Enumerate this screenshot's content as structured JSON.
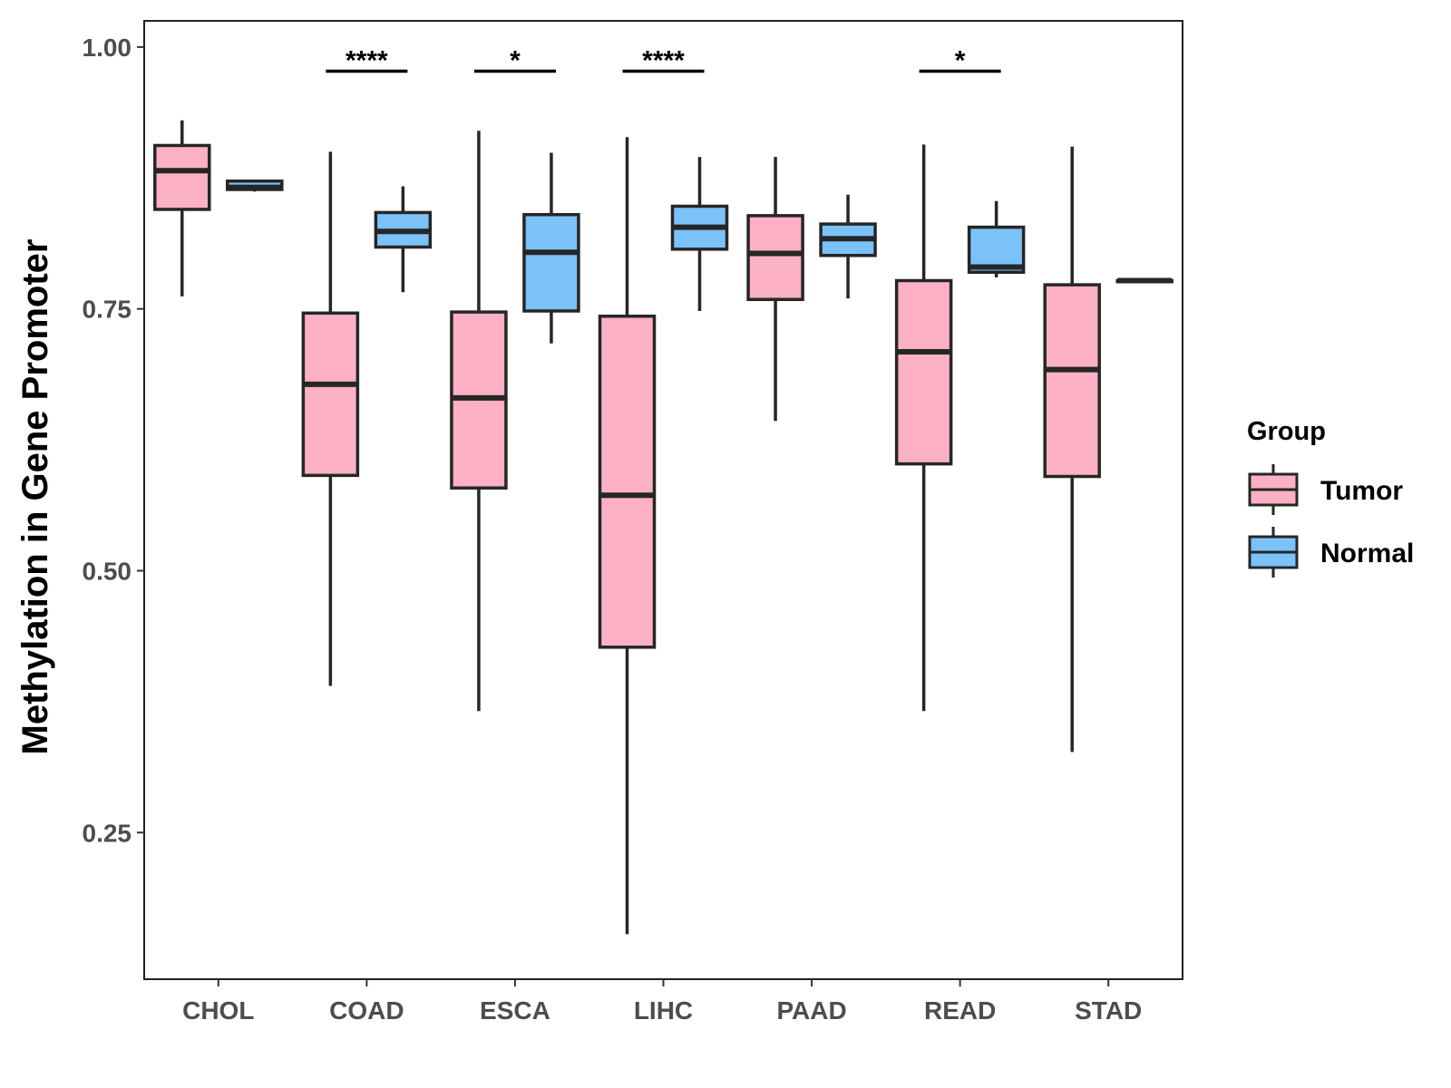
{
  "chart_data": {
    "type": "boxplot",
    "title": "",
    "xlabel": "",
    "ylabel": "Methylation in Gene Promoter",
    "ylim": [
      0.11,
      1.025
    ],
    "yticks": [
      0.25,
      0.5,
      0.75,
      1.0
    ],
    "ytick_labels": [
      "0.25",
      "0.50",
      "0.75",
      "1.00"
    ],
    "categories": [
      "CHOL",
      "COAD",
      "ESCA",
      "LIHC",
      "PAAD",
      "READ",
      "STAD"
    ],
    "legend": {
      "title": "Group",
      "position": "right",
      "entries": [
        {
          "label": "Tumor",
          "color": "#fbb0c3"
        },
        {
          "label": "Normal",
          "color": "#7bc2f8"
        }
      ]
    },
    "series": [
      {
        "name": "Tumor",
        "color": "#fbb0c3",
        "boxes": [
          {
            "category": "CHOL",
            "min": 0.762,
            "q1": 0.845,
            "median": 0.882,
            "q3": 0.906,
            "max": 0.93
          },
          {
            "category": "COAD",
            "min": 0.39,
            "q1": 0.591,
            "median": 0.678,
            "q3": 0.746,
            "max": 0.9
          },
          {
            "category": "ESCA",
            "min": 0.366,
            "q1": 0.579,
            "median": 0.665,
            "q3": 0.747,
            "max": 0.92
          },
          {
            "category": "LIHC",
            "min": 0.153,
            "q1": 0.427,
            "median": 0.572,
            "q3": 0.743,
            "max": 0.914
          },
          {
            "category": "PAAD",
            "min": 0.643,
            "q1": 0.759,
            "median": 0.803,
            "q3": 0.839,
            "max": 0.895
          },
          {
            "category": "READ",
            "min": 0.366,
            "q1": 0.602,
            "median": 0.709,
            "q3": 0.777,
            "max": 0.907
          },
          {
            "category": "STAD",
            "min": 0.327,
            "q1": 0.59,
            "median": 0.692,
            "q3": 0.773,
            "max": 0.905
          }
        ]
      },
      {
        "name": "Normal",
        "color": "#7bc2f8",
        "boxes": [
          {
            "category": "CHOL",
            "min": 0.862,
            "q1": 0.864,
            "median": 0.866,
            "q3": 0.872,
            "max": 0.873
          },
          {
            "category": "COAD",
            "min": 0.766,
            "q1": 0.809,
            "median": 0.824,
            "q3": 0.842,
            "max": 0.867
          },
          {
            "category": "ESCA",
            "min": 0.717,
            "q1": 0.748,
            "median": 0.804,
            "q3": 0.84,
            "max": 0.899
          },
          {
            "category": "LIHC",
            "min": 0.748,
            "q1": 0.807,
            "median": 0.828,
            "q3": 0.848,
            "max": 0.895
          },
          {
            "category": "PAAD",
            "min": 0.76,
            "q1": 0.801,
            "median": 0.817,
            "q3": 0.831,
            "max": 0.859
          },
          {
            "category": "READ",
            "min": 0.78,
            "q1": 0.785,
            "median": 0.79,
            "q3": 0.828,
            "max": 0.853
          },
          {
            "category": "STAD",
            "min": 0.776,
            "q1": 0.776,
            "median": 0.777,
            "q3": 0.777,
            "max": 0.777
          }
        ]
      }
    ],
    "significance": [
      {
        "category": "COAD",
        "label": "****",
        "y": 0.977
      },
      {
        "category": "ESCA",
        "label": "*",
        "y": 0.977
      },
      {
        "category": "LIHC",
        "label": "****",
        "y": 0.977
      },
      {
        "category": "READ",
        "label": "*",
        "y": 0.977
      }
    ]
  }
}
